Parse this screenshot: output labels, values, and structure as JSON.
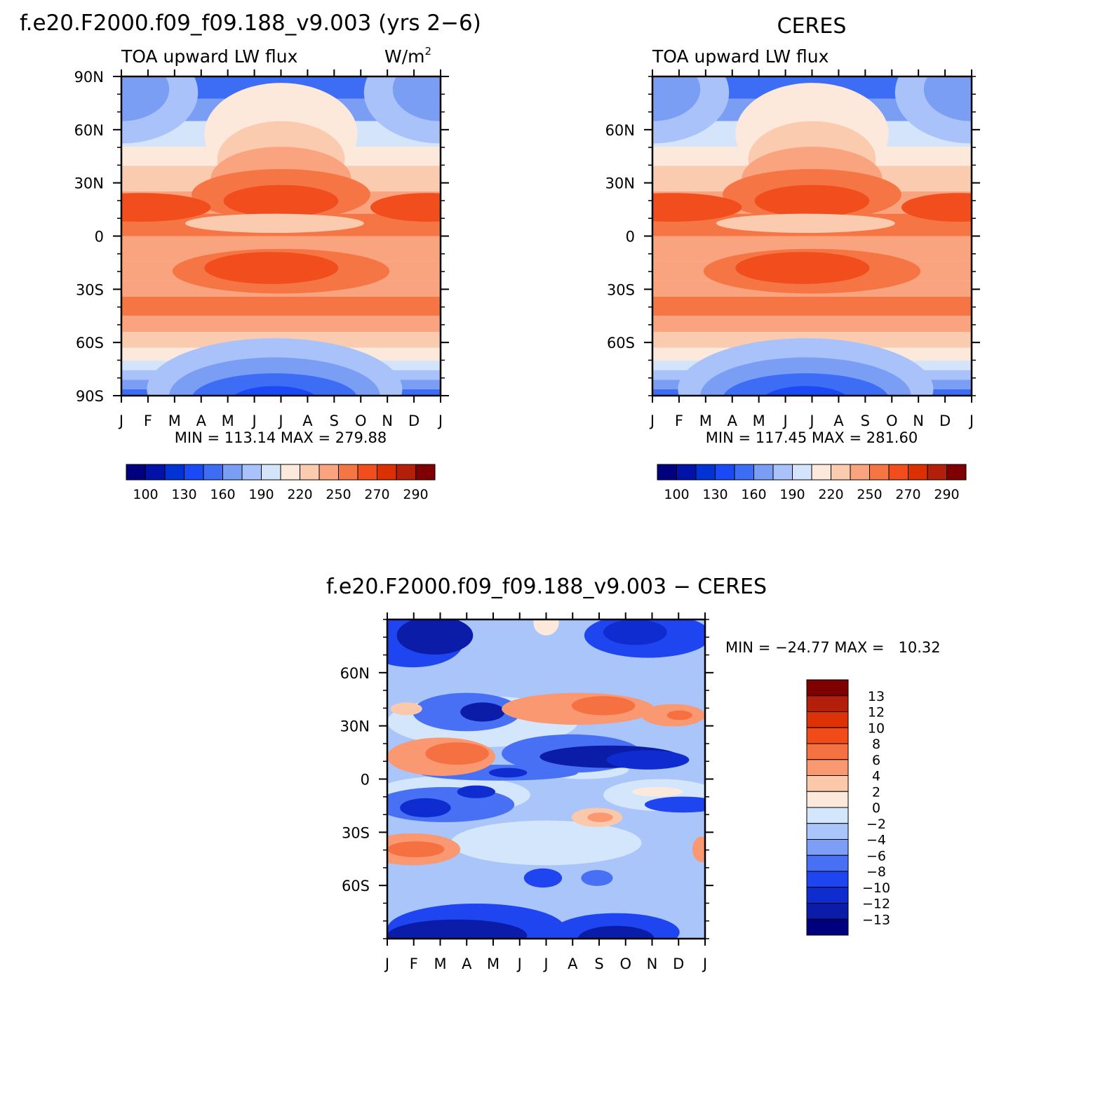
{
  "page": {
    "main_title": "f.e20.F2000.f09_f09.188_v9.003 (yrs 2−6)"
  },
  "colors": {
    "abs_levels": [
      "#00007f",
      "#0012a8",
      "#0032d4",
      "#1a4af5",
      "#3d6cf5",
      "#7b9ef5",
      "#a9c2fa",
      "#d4e5fb",
      "#fde9dc",
      "#fbcbb0",
      "#f9a47e",
      "#f67545",
      "#f24d1c",
      "#da3004",
      "#b31f0a",
      "#7f0000"
    ],
    "diff_levels": [
      "#00007f",
      "#0a1ca8",
      "#0f2cd0",
      "#1f45f0",
      "#4870f5",
      "#7c9ef7",
      "#a9c5fa",
      "#d4e6fb",
      "#fde9dc",
      "#fbc8ac",
      "#f99871",
      "#f57142",
      "#f24b1a",
      "#dd3208",
      "#b31f0a",
      "#7f0000"
    ]
  },
  "chart_data": [
    {
      "id": "model",
      "type": "heatmap",
      "title": "",
      "left_string": "TOA upward LW flux",
      "right_string": "W/m",
      "right_string_sup": "2",
      "x_tick_labels": [
        "J",
        "F",
        "M",
        "A",
        "M",
        "J",
        "J",
        "A",
        "S",
        "O",
        "N",
        "D",
        "J"
      ],
      "y_tick_labels": [
        "90S",
        "60S",
        "30S",
        "0",
        "30N",
        "60N",
        "90N"
      ],
      "y_tick_values": [
        -90,
        -60,
        -30,
        0,
        30,
        60,
        90
      ],
      "ylim": [
        -90,
        90
      ],
      "stats": "MIN = 113.14 MAX = 279.88",
      "colorbar": {
        "orientation": "horizontal",
        "labels": [
          "100",
          "130",
          "160",
          "190",
          "220",
          "250",
          "270",
          "290"
        ]
      }
    },
    {
      "id": "obs",
      "type": "heatmap",
      "title": "CERES",
      "left_string": "TOA upward LW flux",
      "x_tick_labels": [
        "J",
        "F",
        "M",
        "A",
        "M",
        "J",
        "J",
        "A",
        "S",
        "O",
        "N",
        "D",
        "J"
      ],
      "y_tick_labels": [
        "60S",
        "30S",
        "0",
        "30N",
        "60N"
      ],
      "y_tick_values": [
        -60,
        -30,
        0,
        30,
        60
      ],
      "ylim": [
        -90,
        90
      ],
      "stats": "MIN = 117.45 MAX = 281.60",
      "colorbar": {
        "orientation": "horizontal",
        "labels": [
          "100",
          "130",
          "160",
          "190",
          "220",
          "250",
          "270",
          "290"
        ]
      }
    },
    {
      "id": "diff",
      "type": "heatmap",
      "title": "f.e20.F2000.f09_f09.188_v9.003 − CERES",
      "x_tick_labels": [
        "J",
        "F",
        "M",
        "A",
        "M",
        "J",
        "J",
        "A",
        "S",
        "O",
        "N",
        "D",
        "J"
      ],
      "y_tick_labels": [
        "60S",
        "30S",
        "0",
        "30N",
        "60N"
      ],
      "y_tick_values": [
        -60,
        -30,
        0,
        30,
        60
      ],
      "ylim": [
        -90,
        90
      ],
      "stats": "MIN = −24.77 MAX =   10.32",
      "colorbar": {
        "orientation": "vertical",
        "labels": [
          "13",
          "12",
          "10",
          "8",
          "6",
          "4",
          "2",
          "0",
          "−2",
          "−4",
          "−6",
          "−8",
          "−10",
          "−12",
          "−13"
        ]
      }
    }
  ]
}
